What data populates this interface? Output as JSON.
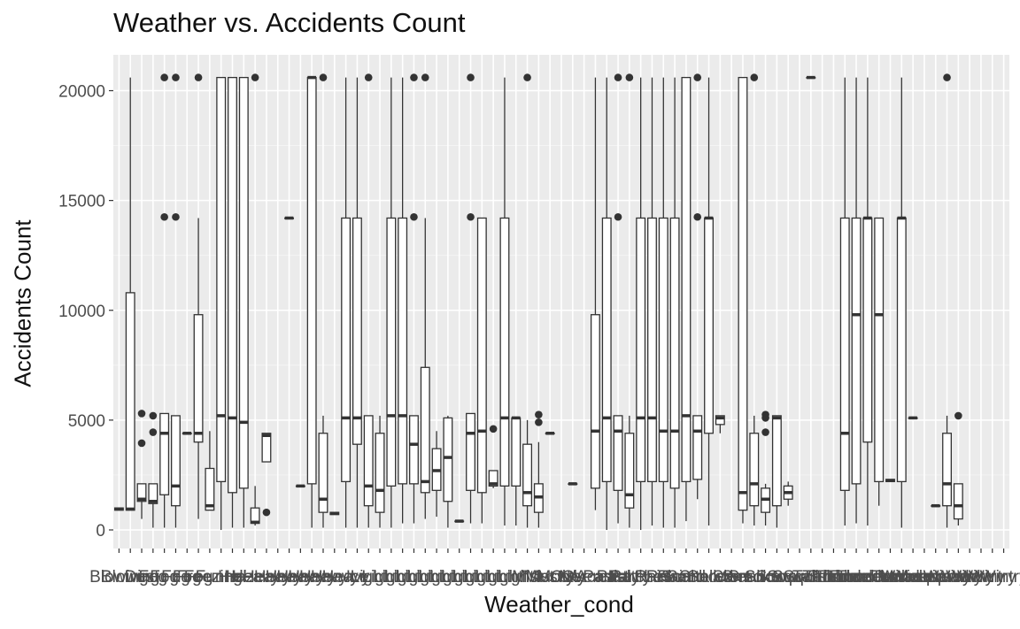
{
  "chart_data": {
    "type": "boxplot",
    "title": "Weather vs. Accidents Count",
    "xlabel": "Weather_cond",
    "ylabel": "Accidents Count",
    "ylim": [
      -1100,
      22000
    ],
    "y_ticks": [
      0,
      5000,
      10000,
      15000,
      20000
    ],
    "grid": true,
    "category_count": 79,
    "categories": [
      "Blowing",
      "Blowing",
      "Dust",
      "Fog",
      "Fog",
      "Fog",
      "Fog",
      "Fog",
      "Freezing",
      "Funnel",
      "Hail",
      "Haze",
      "Heavy",
      "Heavy",
      "Heavy",
      "Heavy",
      "Heavy",
      "Heavy",
      "Heavy",
      "Heavy",
      "Heavy",
      "Ice",
      "Light",
      "Light",
      "Light",
      "Light",
      "Light",
      "Light",
      "Light",
      "Light",
      "Light",
      "Light",
      "Light",
      "Light",
      "Light",
      "Light",
      "Mist",
      "Mist",
      "Mostly",
      "Mostly",
      "N/A",
      "Overcast",
      "Overcast",
      "Partial",
      "Partly",
      "Partly",
      "Patches",
      "Rain",
      "Rain",
      "Rain",
      "Sand",
      "Scattered",
      "Shallow",
      "Showers",
      "Sleet",
      "Small",
      "Smoke",
      "Snow",
      "Snow",
      "Snow",
      "Squalls",
      "Squalls",
      "T-Storm",
      "Thunder",
      "Thunder",
      "Thunder",
      "Thunder",
      "Thunderstorm",
      "Thunderstorms",
      "Tornado",
      "Volcanic",
      "Widespread",
      "Widespread",
      "Wintry",
      "Wintry",
      "Wintry",
      "Wintry",
      "Wintry",
      "Wintry"
    ],
    "boxes": [
      {
        "i": 1,
        "q1": 900,
        "med": 950,
        "q3": 1000,
        "lo": 900,
        "hi": 1000,
        "out": []
      },
      {
        "i": 2,
        "q1": 900,
        "med": 950,
        "q3": 10800,
        "lo": 900,
        "hi": 20600,
        "out": []
      },
      {
        "i": 3,
        "q1": 1300,
        "med": 1400,
        "q3": 2100,
        "lo": 500,
        "hi": 2100,
        "out": [
          5300,
          3950
        ]
      },
      {
        "i": 4,
        "q1": 1200,
        "med": 1300,
        "q3": 2100,
        "lo": 100,
        "hi": 2100,
        "out": [
          5200,
          4450
        ]
      },
      {
        "i": 5,
        "q1": 1600,
        "med": 4400,
        "q3": 5300,
        "lo": 100,
        "hi": 5300,
        "out": [
          20600,
          14250
        ]
      },
      {
        "i": 6,
        "q1": 1100,
        "med": 2000,
        "q3": 5200,
        "lo": 100,
        "hi": 5200,
        "out": [
          20600,
          14250
        ]
      },
      {
        "i": 7,
        "q1": 4400,
        "med": 4400,
        "q3": 4400,
        "lo": 4400,
        "hi": 4400,
        "out": []
      },
      {
        "i": 8,
        "q1": 4000,
        "med": 4400,
        "q3": 9800,
        "lo": 500,
        "hi": 14200,
        "out": [
          20600
        ]
      },
      {
        "i": 9,
        "q1": 900,
        "med": 1100,
        "q3": 2800,
        "lo": 900,
        "hi": 4500,
        "out": []
      },
      {
        "i": 10,
        "q1": 2200,
        "med": 5200,
        "q3": 20600,
        "lo": 0,
        "hi": 20600,
        "out": []
      },
      {
        "i": 11,
        "q1": 1700,
        "med": 5100,
        "q3": 20600,
        "lo": 100,
        "hi": 20600,
        "out": []
      },
      {
        "i": 12,
        "q1": 1900,
        "med": 4900,
        "q3": 20600,
        "lo": 100,
        "hi": 20600,
        "out": []
      },
      {
        "i": 13,
        "q1": 300,
        "med": 350,
        "q3": 1000,
        "lo": 200,
        "hi": 2000,
        "out": [
          20600
        ]
      },
      {
        "i": 14,
        "q1": 3100,
        "med": 4300,
        "q3": 4400,
        "lo": 3100,
        "hi": 4400,
        "out": [
          800
        ]
      },
      {
        "i": 16,
        "q1": 14200,
        "med": 14200,
        "q3": 14200,
        "lo": 14200,
        "hi": 14200,
        "out": []
      },
      {
        "i": 17,
        "q1": 2000,
        "med": 2000,
        "q3": 2000,
        "lo": 2000,
        "hi": 2000,
        "out": []
      },
      {
        "i": 18,
        "q1": 2100,
        "med": 20600,
        "q3": 20600,
        "lo": 100,
        "hi": 20600,
        "out": []
      },
      {
        "i": 19,
        "q1": 800,
        "med": 1400,
        "q3": 4400,
        "lo": 100,
        "hi": 5200,
        "out": [
          20600
        ]
      },
      {
        "i": 20,
        "q1": 700,
        "med": 750,
        "q3": 800,
        "lo": 700,
        "hi": 800,
        "out": []
      },
      {
        "i": 21,
        "q1": 2200,
        "med": 5100,
        "q3": 14200,
        "lo": 100,
        "hi": 20600,
        "out": []
      },
      {
        "i": 22,
        "q1": 3900,
        "med": 5100,
        "q3": 14200,
        "lo": 100,
        "hi": 20600,
        "out": []
      },
      {
        "i": 23,
        "q1": 1100,
        "med": 2000,
        "q3": 5200,
        "lo": 100,
        "hi": 5200,
        "out": [
          20600
        ]
      },
      {
        "i": 24,
        "q1": 800,
        "med": 1800,
        "q3": 4400,
        "lo": 100,
        "hi": 5200,
        "out": []
      },
      {
        "i": 25,
        "q1": 2000,
        "med": 5200,
        "q3": 14200,
        "lo": 100,
        "hi": 20600,
        "out": []
      },
      {
        "i": 26,
        "q1": 2100,
        "med": 5200,
        "q3": 14200,
        "lo": 300,
        "hi": 20600,
        "out": []
      },
      {
        "i": 27,
        "q1": 2100,
        "med": 3900,
        "q3": 5200,
        "lo": 300,
        "hi": 5200,
        "out": [
          20600,
          14250
        ]
      },
      {
        "i": 28,
        "q1": 1700,
        "med": 2200,
        "q3": 7400,
        "lo": 500,
        "hi": 14200,
        "out": [
          20600
        ]
      },
      {
        "i": 29,
        "q1": 1800,
        "med": 2700,
        "q3": 3700,
        "lo": 600,
        "hi": 4500,
        "out": []
      },
      {
        "i": 30,
        "q1": 1300,
        "med": 3300,
        "q3": 5100,
        "lo": 100,
        "hi": 5200,
        "out": []
      },
      {
        "i": 31,
        "q1": 400,
        "med": 400,
        "q3": 400,
        "lo": 400,
        "hi": 400,
        "out": []
      },
      {
        "i": 32,
        "q1": 1800,
        "med": 4400,
        "q3": 5300,
        "lo": 300,
        "hi": 5300,
        "out": [
          20600,
          14250
        ]
      },
      {
        "i": 33,
        "q1": 1700,
        "med": 4500,
        "q3": 14200,
        "lo": 300,
        "hi": 14200,
        "out": []
      },
      {
        "i": 34,
        "q1": 2000,
        "med": 2100,
        "q3": 2700,
        "lo": 1900,
        "hi": 2700,
        "out": [
          4600
        ]
      },
      {
        "i": 35,
        "q1": 2000,
        "med": 5100,
        "q3": 14200,
        "lo": 200,
        "hi": 20600,
        "out": []
      },
      {
        "i": 36,
        "q1": 2000,
        "med": 5100,
        "q3": 5100,
        "lo": 200,
        "hi": 5100,
        "out": []
      },
      {
        "i": 37,
        "q1": 1100,
        "med": 1700,
        "q3": 3900,
        "lo": 100,
        "hi": 5000,
        "out": [
          20600
        ]
      },
      {
        "i": 38,
        "q1": 800,
        "med": 1500,
        "q3": 2100,
        "lo": 100,
        "hi": 4000,
        "out": [
          5250,
          4900
        ]
      },
      {
        "i": 39,
        "q1": 4400,
        "med": 4400,
        "q3": 4400,
        "lo": 4400,
        "hi": 4400,
        "out": []
      },
      {
        "i": 41,
        "q1": 2100,
        "med": 2100,
        "q3": 2100,
        "lo": 2100,
        "hi": 2100,
        "out": []
      },
      {
        "i": 43,
        "q1": 1900,
        "med": 4500,
        "q3": 9800,
        "lo": 900,
        "hi": 20600,
        "out": []
      },
      {
        "i": 44,
        "q1": 2200,
        "med": 5100,
        "q3": 14200,
        "lo": 0,
        "hi": 20600,
        "out": []
      },
      {
        "i": 45,
        "q1": 1800,
        "med": 4500,
        "q3": 5200,
        "lo": 300,
        "hi": 5200,
        "out": [
          20600,
          14250
        ]
      },
      {
        "i": 46,
        "q1": 1000,
        "med": 1600,
        "q3": 4400,
        "lo": 100,
        "hi": 5200,
        "out": [
          20600
        ]
      },
      {
        "i": 47,
        "q1": 2200,
        "med": 5100,
        "q3": 14200,
        "lo": 0,
        "hi": 20600,
        "out": []
      },
      {
        "i": 48,
        "q1": 2200,
        "med": 5100,
        "q3": 14200,
        "lo": 200,
        "hi": 20600,
        "out": []
      },
      {
        "i": 49,
        "q1": 2200,
        "med": 4500,
        "q3": 14200,
        "lo": 100,
        "hi": 20600,
        "out": []
      },
      {
        "i": 50,
        "q1": 1900,
        "med": 4500,
        "q3": 14200,
        "lo": 100,
        "hi": 20600,
        "out": []
      },
      {
        "i": 51,
        "q1": 2200,
        "med": 5200,
        "q3": 20600,
        "lo": 400,
        "hi": 20600,
        "out": []
      },
      {
        "i": 52,
        "q1": 2300,
        "med": 4500,
        "q3": 5200,
        "lo": 1400,
        "hi": 5200,
        "out": [
          20600,
          14250
        ]
      },
      {
        "i": 53,
        "q1": 4400,
        "med": 14200,
        "q3": 14200,
        "lo": 200,
        "hi": 20600,
        "out": []
      },
      {
        "i": 54,
        "q1": 4800,
        "med": 5100,
        "q3": 5200,
        "lo": 4400,
        "hi": 5200,
        "out": []
      },
      {
        "i": 56,
        "q1": 900,
        "med": 1700,
        "q3": 20600,
        "lo": 300,
        "hi": 20600,
        "out": []
      },
      {
        "i": 57,
        "q1": 1100,
        "med": 2100,
        "q3": 4400,
        "lo": 200,
        "hi": 5200,
        "out": [
          20600
        ]
      },
      {
        "i": 58,
        "q1": 800,
        "med": 1400,
        "q3": 1900,
        "lo": 200,
        "hi": 2100,
        "out": [
          5250,
          5100,
          4450
        ]
      },
      {
        "i": 59,
        "q1": 1100,
        "med": 5100,
        "q3": 5200,
        "lo": 100,
        "hi": 5200,
        "out": []
      },
      {
        "i": 60,
        "q1": 1400,
        "med": 1700,
        "q3": 2000,
        "lo": 1100,
        "hi": 2200,
        "out": []
      },
      {
        "i": 62,
        "q1": 20600,
        "med": 20600,
        "q3": 20600,
        "lo": 20600,
        "hi": 20600,
        "out": []
      },
      {
        "i": 65,
        "q1": 1800,
        "med": 4400,
        "q3": 14200,
        "lo": 200,
        "hi": 20600,
        "out": []
      },
      {
        "i": 66,
        "q1": 2100,
        "med": 9800,
        "q3": 14200,
        "lo": 300,
        "hi": 20600,
        "out": []
      },
      {
        "i": 67,
        "q1": 4000,
        "med": 14200,
        "q3": 14200,
        "lo": 200,
        "hi": 20600,
        "out": []
      },
      {
        "i": 68,
        "q1": 2200,
        "med": 9800,
        "q3": 14200,
        "lo": 1100,
        "hi": 14200,
        "out": []
      },
      {
        "i": 69,
        "q1": 2200,
        "med": 2250,
        "q3": 2300,
        "lo": 2200,
        "hi": 2300,
        "out": []
      },
      {
        "i": 70,
        "q1": 2200,
        "med": 14200,
        "q3": 14200,
        "lo": 100,
        "hi": 20600,
        "out": []
      },
      {
        "i": 71,
        "q1": 5100,
        "med": 5100,
        "q3": 5100,
        "lo": 5100,
        "hi": 5100,
        "out": []
      },
      {
        "i": 73,
        "q1": 1100,
        "med": 1100,
        "q3": 1100,
        "lo": 1100,
        "hi": 1100,
        "out": []
      },
      {
        "i": 74,
        "q1": 1100,
        "med": 2100,
        "q3": 4400,
        "lo": 100,
        "hi": 5200,
        "out": [
          20600
        ]
      },
      {
        "i": 75,
        "q1": 500,
        "med": 1100,
        "q3": 2100,
        "lo": 200,
        "hi": 2100,
        "out": [
          5200
        ]
      }
    ]
  },
  "style": {
    "panel_bg": "#ebebeb",
    "grid_major": "#ffffff",
    "box_line": "#333333",
    "box_fill": "#ffffff",
    "outlier": "#333333",
    "axis_text": "#4d4d4d",
    "axis_title": "#111111"
  }
}
